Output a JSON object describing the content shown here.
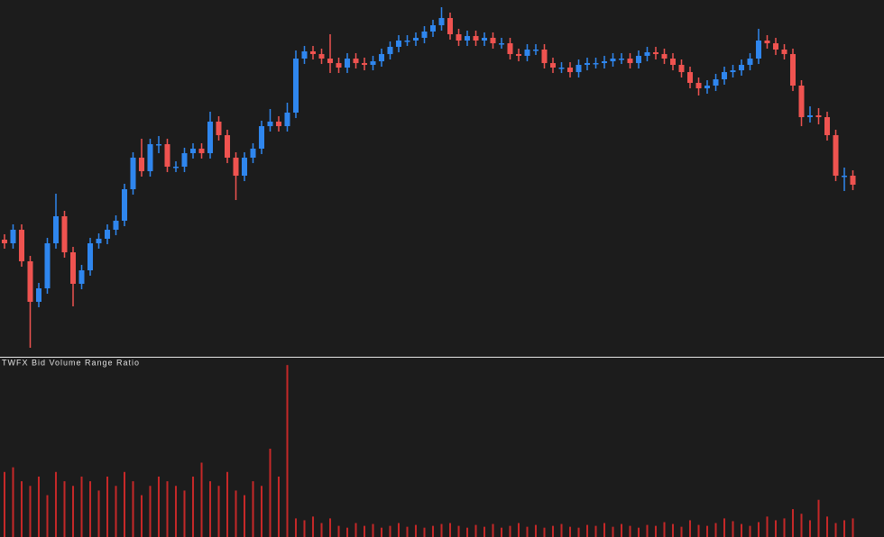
{
  "chart_data": [
    {
      "type": "candlestick",
      "open": [
        130,
        126,
        141,
        106,
        61,
        76,
        126,
        156,
        116,
        81,
        96,
        126,
        131,
        141,
        151,
        186,
        221,
        206,
        236,
        236,
        211,
        211,
        226,
        231,
        226,
        261,
        246,
        221,
        201,
        221,
        231,
        256,
        261,
        256,
        271,
        331,
        339,
        336,
        331,
        326,
        321,
        331,
        326,
        324,
        328,
        336,
        344,
        351,
        351,
        354,
        361,
        368,
        376,
        358,
        351,
        356,
        351,
        354,
        348,
        348,
        336,
        334,
        341,
        341,
        326,
        321,
        321,
        316,
        324,
        326,
        326,
        328,
        331,
        331,
        326,
        334,
        338,
        336,
        331,
        324,
        316,
        304,
        298,
        301,
        308,
        316,
        318,
        324,
        331,
        351,
        348,
        341,
        336,
        301,
        266,
        268,
        266,
        246,
        201,
        201
      ],
      "high": [
        136,
        147,
        147,
        112,
        82,
        132,
        181,
        162,
        122,
        102,
        132,
        137,
        147,
        157,
        192,
        227,
        242,
        242,
        245,
        242,
        217,
        232,
        237,
        237,
        272,
        267,
        252,
        227,
        227,
        237,
        262,
        275,
        267,
        282,
        340,
        345,
        345,
        342,
        358,
        332,
        337,
        337,
        332,
        334,
        342,
        350,
        357,
        357,
        360,
        367,
        374,
        388,
        382,
        364,
        362,
        362,
        360,
        360,
        354,
        354,
        342,
        347,
        347,
        347,
        332,
        327,
        327,
        330,
        332,
        332,
        334,
        337,
        337,
        337,
        340,
        344,
        344,
        342,
        337,
        330,
        322,
        310,
        307,
        314,
        322,
        324,
        330,
        337,
        364,
        357,
        354,
        347,
        342,
        307,
        278,
        276,
        272,
        252,
        210,
        207
      ],
      "low": [
        120,
        120,
        100,
        10,
        55,
        70,
        120,
        110,
        56,
        75,
        90,
        120,
        125,
        135,
        145,
        180,
        200,
        200,
        226,
        205,
        205,
        205,
        220,
        220,
        220,
        240,
        215,
        174,
        195,
        215,
        225,
        250,
        250,
        250,
        265,
        325,
        330,
        325,
        315,
        315,
        315,
        320,
        318,
        318,
        322,
        330,
        338,
        345,
        345,
        348,
        355,
        362,
        352,
        345,
        345,
        345,
        345,
        342,
        342,
        330,
        328,
        328,
        335,
        320,
        315,
        315,
        310,
        310,
        318,
        320,
        320,
        322,
        325,
        320,
        320,
        328,
        330,
        325,
        318,
        310,
        298,
        290,
        292,
        295,
        302,
        310,
        312,
        318,
        325,
        342,
        335,
        330,
        295,
        256,
        260,
        258,
        240,
        195,
        184,
        185
      ],
      "close": [
        126,
        141,
        106,
        61,
        76,
        126,
        156,
        116,
        81,
        96,
        126,
        131,
        141,
        151,
        186,
        221,
        206,
        236,
        236,
        211,
        211,
        226,
        231,
        226,
        261,
        246,
        221,
        201,
        221,
        231,
        256,
        261,
        256,
        271,
        331,
        339,
        336,
        331,
        326,
        321,
        331,
        326,
        324,
        328,
        336,
        344,
        351,
        351,
        354,
        361,
        368,
        376,
        358,
        351,
        356,
        351,
        354,
        348,
        348,
        336,
        334,
        341,
        341,
        326,
        321,
        321,
        316,
        324,
        326,
        326,
        328,
        331,
        331,
        326,
        334,
        338,
        336,
        331,
        324,
        316,
        304,
        298,
        301,
        308,
        316,
        318,
        324,
        331,
        351,
        348,
        341,
        336,
        301,
        266,
        268,
        266,
        246,
        201,
        201,
        191
      ],
      "up_color": "#2f86ee",
      "down_color": "#ef5350",
      "ylim": [
        0,
        396
      ]
    },
    {
      "type": "bar",
      "title": "TWFX Bid Volume Range Ratio",
      "values": [
        70,
        75,
        60,
        55,
        65,
        45,
        70,
        60,
        55,
        65,
        60,
        50,
        65,
        55,
        70,
        60,
        45,
        55,
        65,
        60,
        55,
        50,
        65,
        80,
        60,
        55,
        70,
        50,
        45,
        60,
        55,
        95,
        65,
        185,
        20,
        18,
        22,
        15,
        20,
        12,
        10,
        15,
        12,
        14,
        10,
        12,
        15,
        11,
        13,
        10,
        12,
        14,
        15,
        12,
        10,
        13,
        11,
        14,
        10,
        12,
        15,
        11,
        13,
        10,
        12,
        14,
        11,
        10,
        13,
        12,
        15,
        11,
        14,
        12,
        10,
        13,
        12,
        16,
        14,
        11,
        18,
        13,
        12,
        15,
        20,
        17,
        14,
        12,
        16,
        22,
        18,
        20,
        30,
        25,
        18,
        40,
        22,
        15,
        18,
        20
      ],
      "color": "#c62828",
      "ylim": [
        0,
        190
      ]
    }
  ]
}
